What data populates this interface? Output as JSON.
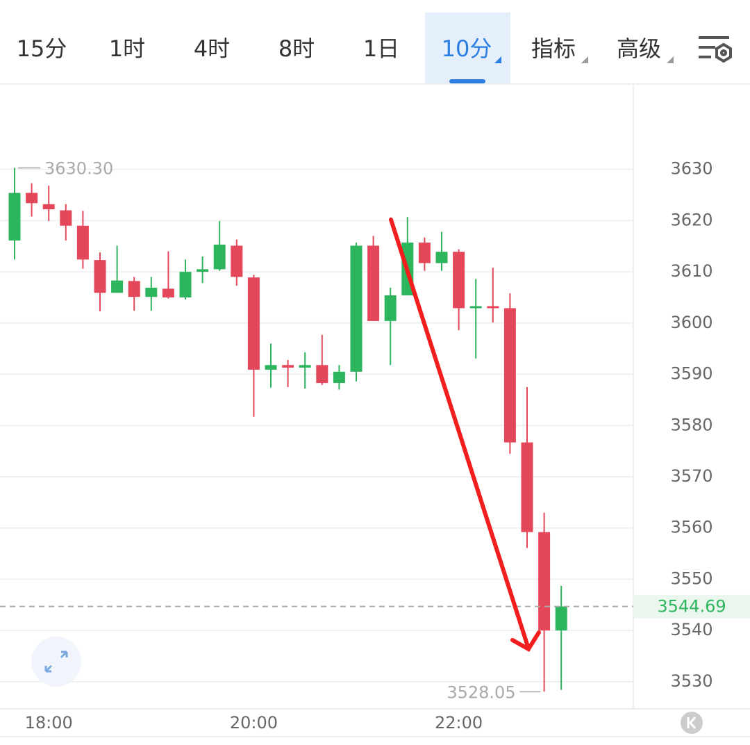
{
  "toolbar": {
    "tabs": [
      "15分",
      "1时",
      "4时",
      "8时",
      "1日",
      "10分",
      "指标",
      "高级"
    ],
    "active": 5
  },
  "chart_data": {
    "type": "candlestick",
    "categories": [
      null,
      null,
      "18:00",
      null,
      null,
      null,
      null,
      null,
      null,
      null,
      null,
      null,
      null,
      null,
      "20:00",
      null,
      null,
      null,
      null,
      null,
      null,
      null,
      null,
      null,
      null,
      null,
      "22:00",
      null,
      null,
      null,
      null,
      null,
      null
    ],
    "open": [
      3616.1,
      3625.4,
      3623.2,
      3622.0,
      3619.0,
      3612.3,
      3605.9,
      3608.2,
      3605.1,
      3606.7,
      3605.0,
      3610.0,
      3610.5,
      3615.1,
      3608.9,
      3590.9,
      3591.8,
      3591.3,
      3591.8,
      3588.3,
      3590.5,
      3615.1,
      3600.4,
      3605.4,
      3615.7,
      3611.7,
      3613.9,
      3602.9,
      3603.3,
      3602.9,
      3576.7,
      3559.2,
      3540.0
    ],
    "high": [
      3630.3,
      3627.3,
      3626.8,
      3623.2,
      3621.9,
      3613.8,
      3615.1,
      3609.0,
      3609.0,
      3614.0,
      3612.4,
      3613.0,
      3619.9,
      3616.3,
      3609.4,
      3596.0,
      3592.8,
      3594.3,
      3597.7,
      3591.8,
      3615.7,
      3617.0,
      3606.9,
      3620.7,
      3616.7,
      3617.8,
      3614.4,
      3608.6,
      3610.8,
      3605.8,
      3587.5,
      3563.0,
      3548.7
    ],
    "low": [
      3612.4,
      3620.8,
      3619.9,
      3616.1,
      3610.6,
      3602.3,
      3605.9,
      3602.4,
      3602.4,
      3604.8,
      3604.6,
      3607.8,
      3610.2,
      3607.3,
      3581.7,
      3587.4,
      3587.5,
      3587.2,
      3587.9,
      3587.0,
      3588.6,
      3600.4,
      3591.8,
      3605.4,
      3610.2,
      3610.2,
      3598.6,
      3593.1,
      3600.1,
      3574.5,
      3556.1,
      3528.05,
      3528.4
    ],
    "close": [
      3625.4,
      3623.4,
      3622.2,
      3619.0,
      3612.4,
      3605.9,
      3608.3,
      3605.1,
      3606.9,
      3605.0,
      3610.0,
      3610.5,
      3615.3,
      3609.0,
      3590.9,
      3591.8,
      3591.3,
      3591.8,
      3588.3,
      3590.5,
      3615.1,
      3600.4,
      3605.4,
      3615.7,
      3611.7,
      3613.9,
      3602.9,
      3603.3,
      3602.9,
      3576.7,
      3559.2,
      3540.0,
      3544.69
    ],
    "up_color": "#2db55d",
    "down_color": "#e5475a",
    "ylim": [
      3524.7,
      3646.5
    ],
    "yticks": [
      3530,
      3540,
      3550,
      3560,
      3570,
      3580,
      3590,
      3600,
      3610,
      3620,
      3630
    ],
    "grid": true,
    "high_marker": {
      "value": 3630.3,
      "label": "3630.30"
    },
    "low_marker": {
      "value": 3528.05,
      "label": "3528.05"
    },
    "last_price": 3544.69
  }
}
